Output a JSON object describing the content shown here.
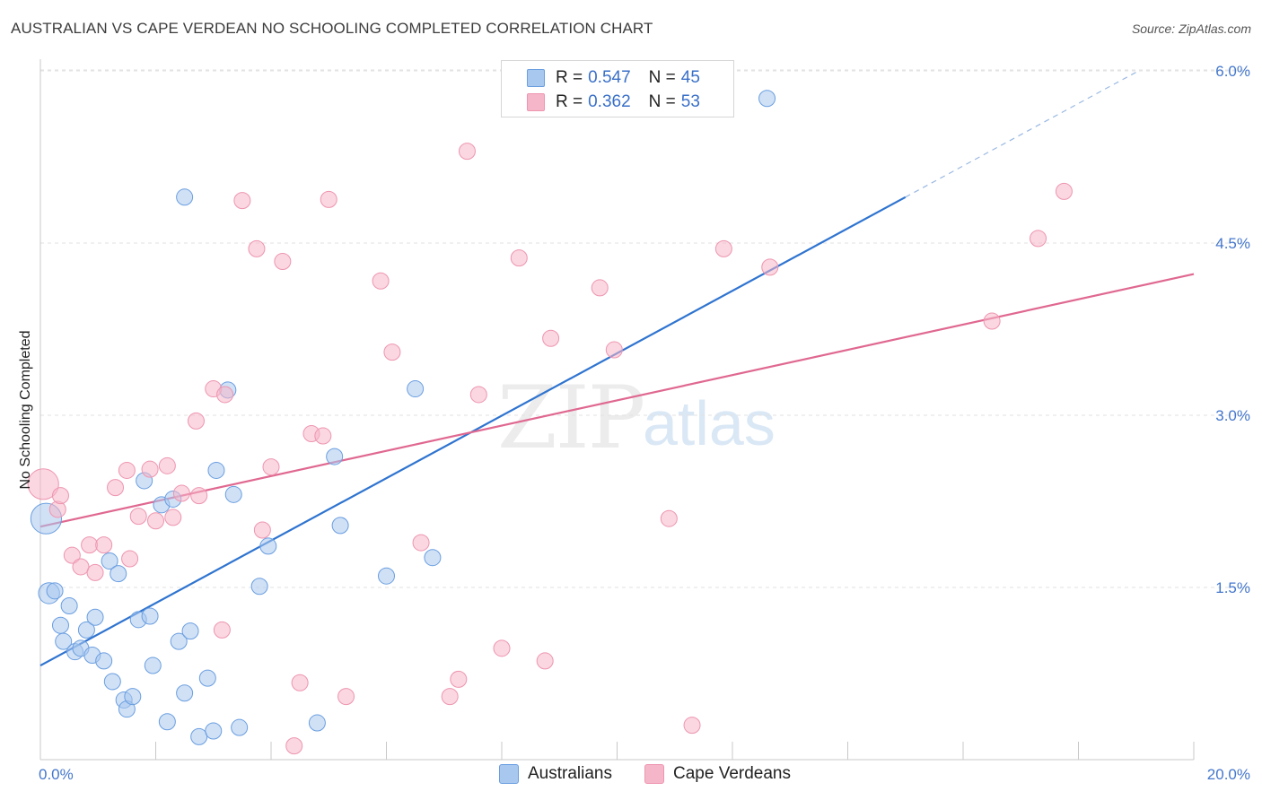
{
  "title": "AUSTRALIAN VS CAPE VERDEAN NO SCHOOLING COMPLETED CORRELATION CHART",
  "source": "Source: ZipAtlas.com",
  "watermark": {
    "zip": "ZIP",
    "atlas": "atlas"
  },
  "legend": {
    "r_label": "R =",
    "n_label": "N =",
    "rows": [
      {
        "r": "0.547",
        "n": "45",
        "color": "#a9c8ef"
      },
      {
        "r": "0.362",
        "n": "53",
        "color": "#f6b6c9"
      }
    ]
  },
  "bottom_legend": [
    {
      "label": "Australians",
      "color": "#a9c8ef"
    },
    {
      "label": "Cape Verdeans",
      "color": "#f6b6c9"
    }
  ],
  "chart_data": {
    "type": "scatter",
    "ylabel": "No Schooling Completed",
    "xlim": [
      0,
      20
    ],
    "ylim": [
      0,
      6.25
    ],
    "x_tick_labels": [
      "0.0%",
      "20.0%"
    ],
    "y_ticks": [
      1.5,
      3.0,
      4.5,
      6.0
    ],
    "y_tick_labels": [
      "1.5%",
      "3.0%",
      "4.5%",
      "6.0%"
    ],
    "grid": true,
    "series": [
      {
        "name": "Australians",
        "color": "#6a9ee0",
        "fill": "#a9c8ef",
        "line_color": "#2f74d0",
        "trend": {
          "x0": 0,
          "y0": 0.82,
          "x1": 15.0,
          "y1": 4.9,
          "dash_to_x": 19.0
        },
        "points": [
          [
            0.1,
            2.1,
            1.9
          ],
          [
            0.15,
            1.45,
            1.3
          ],
          [
            0.25,
            1.47,
            1
          ],
          [
            0.35,
            1.17,
            1
          ],
          [
            0.4,
            1.03,
            1
          ],
          [
            0.5,
            1.34,
            1
          ],
          [
            0.6,
            0.94,
            1
          ],
          [
            0.7,
            0.97,
            1
          ],
          [
            0.8,
            1.13,
            1
          ],
          [
            0.9,
            0.91,
            1
          ],
          [
            0.95,
            1.24,
            1
          ],
          [
            1.1,
            0.86,
            1
          ],
          [
            1.2,
            1.73,
            1
          ],
          [
            1.25,
            0.68,
            1
          ],
          [
            1.35,
            1.62,
            1
          ],
          [
            1.45,
            0.52,
            1
          ],
          [
            1.5,
            0.44,
            1
          ],
          [
            1.6,
            0.55,
            1
          ],
          [
            1.7,
            1.22,
            1
          ],
          [
            1.8,
            2.43,
            1
          ],
          [
            1.9,
            1.25,
            1
          ],
          [
            1.95,
            0.82,
            1
          ],
          [
            2.1,
            2.22,
            1
          ],
          [
            2.2,
            0.33,
            1
          ],
          [
            2.3,
            2.27,
            1
          ],
          [
            2.4,
            1.03,
            1
          ],
          [
            2.5,
            4.9,
            1
          ],
          [
            2.5,
            0.58,
            1
          ],
          [
            2.6,
            1.12,
            1
          ],
          [
            2.75,
            0.2,
            1
          ],
          [
            2.9,
            0.71,
            1
          ],
          [
            3.0,
            0.25,
            1
          ],
          [
            3.05,
            2.52,
            1
          ],
          [
            3.25,
            3.22,
            1
          ],
          [
            3.35,
            2.31,
            1
          ],
          [
            3.45,
            0.28,
            1
          ],
          [
            3.8,
            1.51,
            1
          ],
          [
            3.95,
            1.86,
            1
          ],
          [
            4.8,
            0.32,
            1
          ],
          [
            5.1,
            2.64,
            1
          ],
          [
            5.2,
            2.04,
            1
          ],
          [
            6.0,
            1.6,
            1
          ],
          [
            6.5,
            3.23,
            1
          ],
          [
            6.8,
            1.76,
            1
          ],
          [
            12.6,
            5.76,
            1
          ]
        ]
      },
      {
        "name": "Cape Verdeans",
        "color": "#ee95b0",
        "fill": "#f6b6c9",
        "line_color": "#e06890",
        "trend": {
          "x0": 0,
          "y0": 2.03,
          "x1": 20.0,
          "y1": 4.23
        },
        "points": [
          [
            0.05,
            2.4,
            1.9
          ],
          [
            0.3,
            2.18,
            1
          ],
          [
            0.35,
            2.3,
            1
          ],
          [
            0.55,
            1.78,
            1
          ],
          [
            0.7,
            1.68,
            1
          ],
          [
            0.85,
            1.87,
            1
          ],
          [
            0.95,
            1.63,
            1
          ],
          [
            1.1,
            1.87,
            1
          ],
          [
            1.3,
            2.37,
            1
          ],
          [
            1.5,
            2.52,
            1
          ],
          [
            1.55,
            1.75,
            1
          ],
          [
            1.7,
            2.12,
            1
          ],
          [
            1.9,
            2.53,
            1
          ],
          [
            2.0,
            2.08,
            1
          ],
          [
            2.2,
            2.56,
            1
          ],
          [
            2.3,
            2.11,
            1
          ],
          [
            2.45,
            2.32,
            1
          ],
          [
            2.7,
            2.95,
            1
          ],
          [
            2.75,
            2.3,
            1
          ],
          [
            3.0,
            3.23,
            1
          ],
          [
            3.15,
            1.13,
            1
          ],
          [
            3.2,
            3.18,
            1
          ],
          [
            3.5,
            4.87,
            1
          ],
          [
            3.75,
            4.45,
            1
          ],
          [
            3.85,
            2.0,
            1
          ],
          [
            4.0,
            2.55,
            1
          ],
          [
            4.2,
            4.34,
            1
          ],
          [
            4.4,
            0.12,
            1
          ],
          [
            4.5,
            0.67,
            1
          ],
          [
            4.7,
            2.84,
            1
          ],
          [
            4.9,
            2.82,
            1
          ],
          [
            5.0,
            4.88,
            1
          ],
          [
            5.3,
            0.55,
            1
          ],
          [
            5.9,
            4.17,
            1
          ],
          [
            6.1,
            3.55,
            1
          ],
          [
            6.6,
            1.89,
            1
          ],
          [
            7.1,
            0.55,
            1
          ],
          [
            7.25,
            0.7,
            1
          ],
          [
            7.4,
            5.3,
            1
          ],
          [
            7.6,
            3.18,
            1
          ],
          [
            8.0,
            0.97,
            1
          ],
          [
            8.3,
            4.37,
            1
          ],
          [
            8.75,
            0.86,
            1
          ],
          [
            8.85,
            3.67,
            1
          ],
          [
            9.7,
            4.11,
            1
          ],
          [
            9.95,
            3.57,
            1
          ],
          [
            10.9,
            2.1,
            1
          ],
          [
            11.3,
            0.3,
            1
          ],
          [
            11.85,
            4.45,
            1
          ],
          [
            12.65,
            4.29,
            1
          ],
          [
            16.5,
            3.82,
            1
          ],
          [
            17.3,
            4.54,
            1
          ],
          [
            17.75,
            4.95,
            1
          ]
        ]
      }
    ]
  }
}
